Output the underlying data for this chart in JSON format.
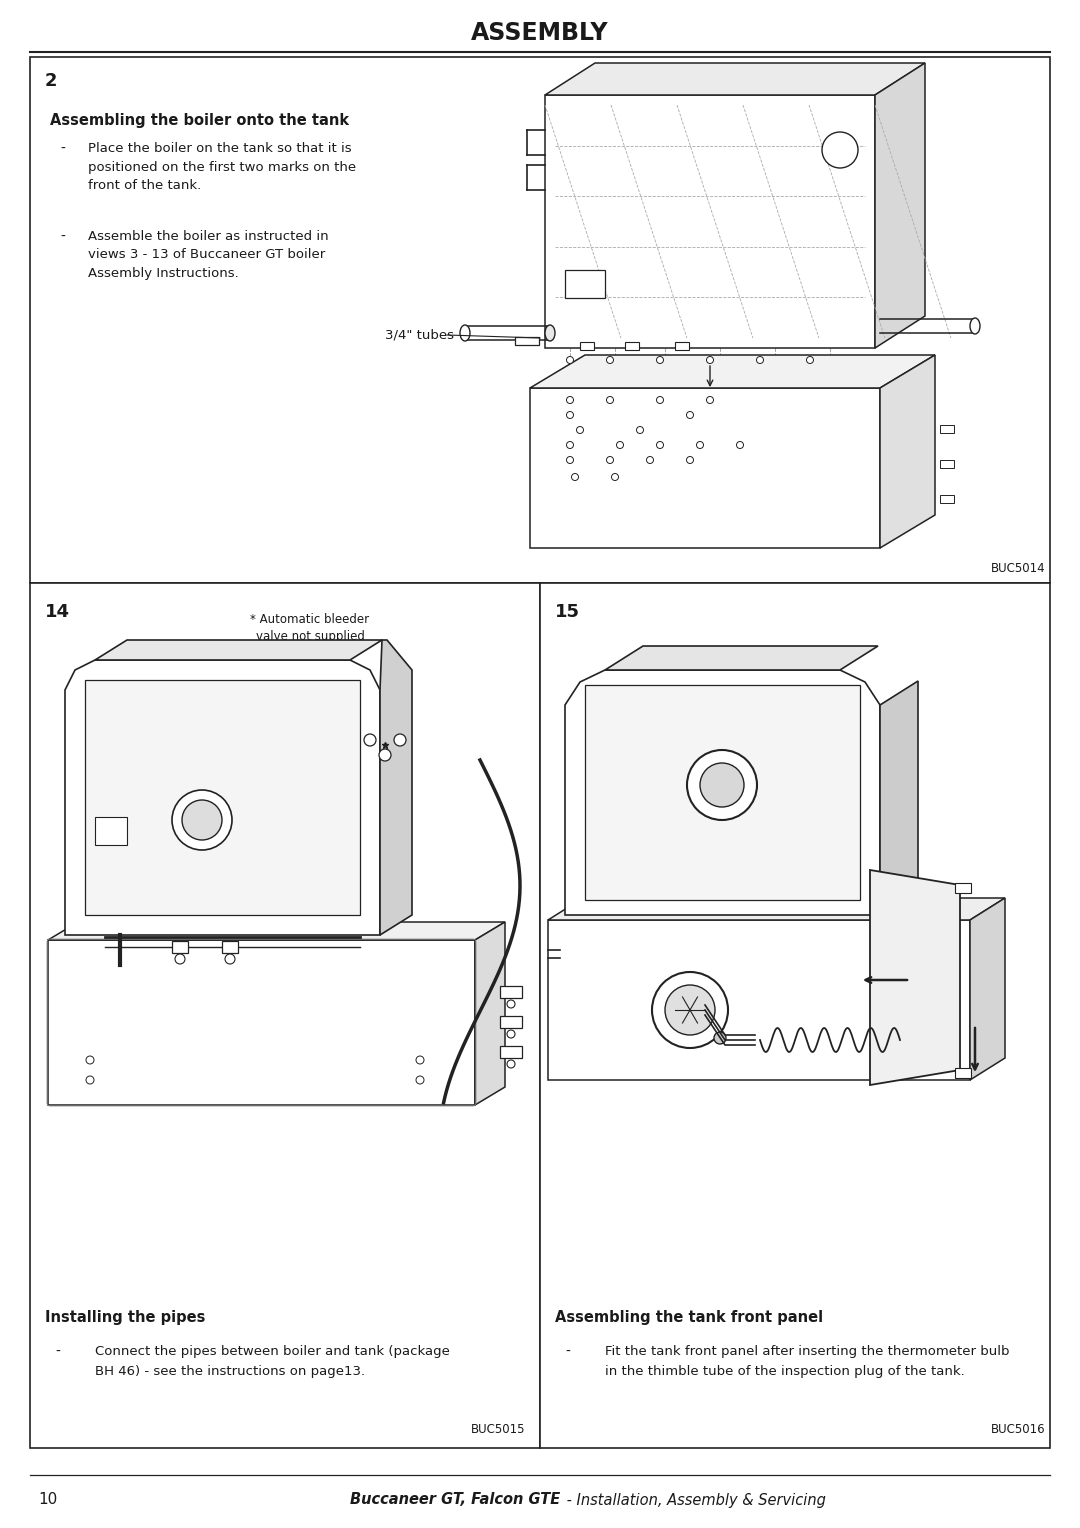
{
  "page_title": "ASSEMBLY",
  "page_number": "10",
  "footer_text_bold": "Buccaneer GT, Falcon GTE",
  "footer_text_regular": " - Installation, Assembly & Servicing",
  "bg_color": "#ffffff",
  "text_color": "#1a1a1a",
  "border_color": "#222222",
  "section2_number": "2",
  "section2_heading": "Assembling the boiler onto the tank",
  "section2_bullet1_dash": "-",
  "section2_bullet1": "Place the boiler on the tank so that it is\npositioned on the first two marks on the\nfront of the tank.",
  "section2_bullet2_dash": "-",
  "section2_bullet2": "Assemble the boiler as instructed in\nviews 3 - 13 of Buccaneer GT boiler\nAssembly Instructions.",
  "section2_label": "3/4\" tubes",
  "section2_fig": "BUC5014",
  "section14_number": "14",
  "section14_heading": "Installing the pipes",
  "section14_bullet1_dash": "-",
  "section14_bullet1_line1": "Connect the pipes between boiler and tank (package",
  "section14_bullet1_line2": "BH 46) - see the instructions on page13.",
  "section14_note": "* Automatic bleeder\nvalve not supplied",
  "section14_fig": "BUC5015",
  "section15_number": "15",
  "section15_heading": "Assembling the tank front panel",
  "section15_bullet1_dash": "-",
  "section15_bullet1_line1": "Fit the tank front panel after inserting the thermometer bulb",
  "section15_bullet1_line2": "in the thimble tube of the inspection plug of the tank.",
  "section15_fig": "BUC5016"
}
